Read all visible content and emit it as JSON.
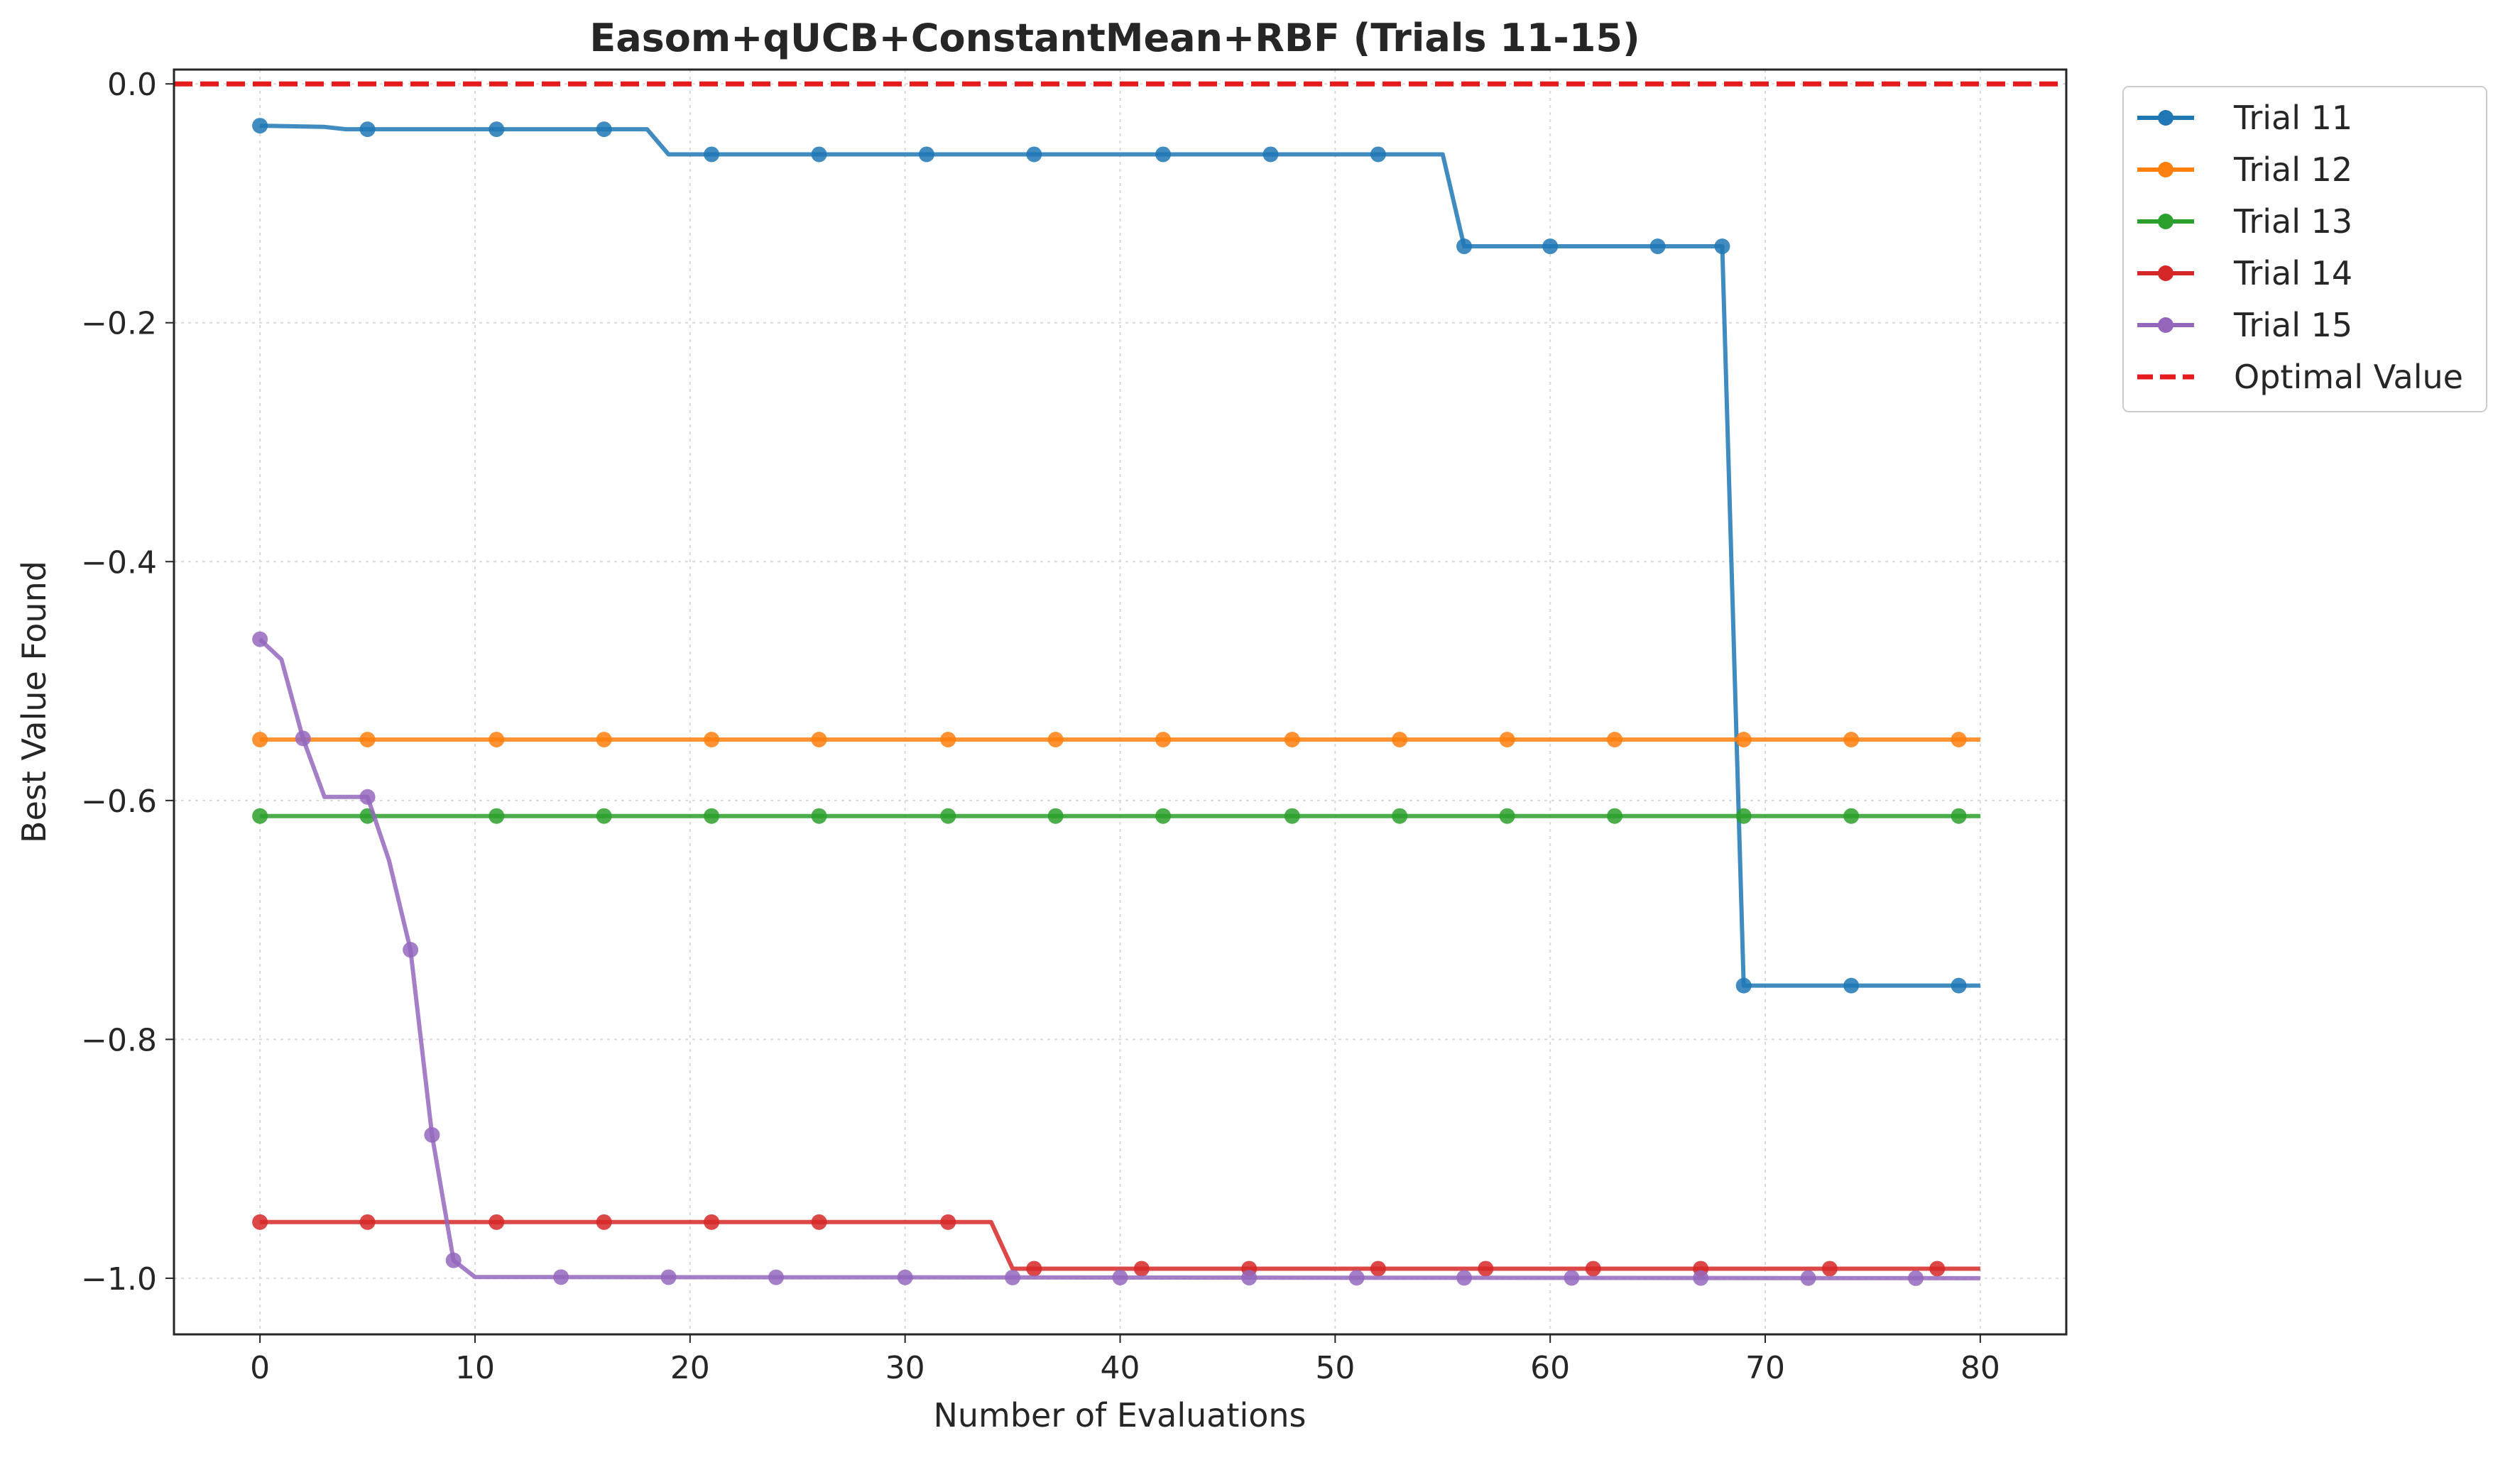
{
  "chart_data": {
    "type": "line",
    "title": "Easom+qUCB+ConstantMean+RBF (Trials 11-15)",
    "xlabel": "Number of Evaluations",
    "ylabel": "Best Value Found",
    "xlim": [
      -4,
      84
    ],
    "ylim": [
      -1.047,
      0.012
    ],
    "xticks": [
      0,
      10,
      20,
      30,
      40,
      50,
      60,
      70,
      80
    ],
    "xtick_labels": [
      "0",
      "10",
      "20",
      "30",
      "40",
      "50",
      "60",
      "70",
      "80"
    ],
    "yticks": [
      0.0,
      -0.2,
      -0.4,
      -0.6,
      -0.8,
      -1.0
    ],
    "ytick_labels": [
      "0.0",
      "−0.2",
      "−0.4",
      "−0.6",
      "−0.8",
      "−1.0"
    ],
    "grid": true,
    "legend_position": "outside-top-right",
    "series": [
      {
        "name": "Trial 11",
        "color": "#1f77b4",
        "points": [
          [
            0,
            -0.035
          ],
          [
            3,
            -0.036
          ],
          [
            4,
            -0.038
          ],
          [
            18,
            -0.038
          ],
          [
            19,
            -0.059
          ],
          [
            55,
            -0.059
          ],
          [
            56,
            -0.136
          ],
          [
            68,
            -0.136
          ],
          [
            69,
            -0.755
          ],
          [
            80,
            -0.755
          ]
        ],
        "markers": [
          0,
          5,
          11,
          16,
          21,
          26,
          31,
          36,
          42,
          47,
          52,
          56,
          60,
          65,
          68,
          69,
          74,
          79
        ]
      },
      {
        "name": "Trial 12",
        "color": "#ff7f0e",
        "points": [
          [
            0,
            -0.549
          ],
          [
            80,
            -0.549
          ]
        ],
        "markers": [
          0,
          5,
          11,
          16,
          21,
          26,
          32,
          37,
          42,
          48,
          53,
          58,
          63,
          69,
          74,
          79
        ]
      },
      {
        "name": "Trial 13",
        "color": "#2ca02c",
        "points": [
          [
            0,
            -0.613
          ],
          [
            80,
            -0.613
          ]
        ],
        "markers": [
          0,
          5,
          11,
          16,
          21,
          26,
          32,
          37,
          42,
          48,
          53,
          58,
          63,
          69,
          74,
          79
        ]
      },
      {
        "name": "Trial 14",
        "color": "#d62728",
        "points": [
          [
            0,
            -0.953
          ],
          [
            34,
            -0.953
          ],
          [
            35,
            -0.992
          ],
          [
            80,
            -0.992
          ]
        ],
        "markers": [
          0,
          5,
          11,
          16,
          21,
          26,
          32,
          36,
          41,
          46,
          52,
          57,
          62,
          67,
          73,
          78
        ]
      },
      {
        "name": "Trial 15",
        "color": "#9467bd",
        "points": [
          [
            0,
            -0.465
          ],
          [
            1,
            -0.482
          ],
          [
            2,
            -0.548
          ],
          [
            3,
            -0.597
          ],
          [
            5,
            -0.597
          ],
          [
            6,
            -0.65
          ],
          [
            7,
            -0.725
          ],
          [
            8,
            -0.88
          ],
          [
            9,
            -0.985
          ],
          [
            10,
            -0.999
          ],
          [
            80,
            -1.0
          ]
        ],
        "markers": [
          0,
          2,
          5,
          7,
          8,
          9,
          14,
          19,
          24,
          30,
          35,
          40,
          46,
          51,
          56,
          61,
          67,
          72,
          77
        ]
      }
    ],
    "reference_lines": [
      {
        "name": "Optimal Value",
        "y": 0.0,
        "color": "#e41a1c",
        "style": "dashed"
      }
    ]
  }
}
